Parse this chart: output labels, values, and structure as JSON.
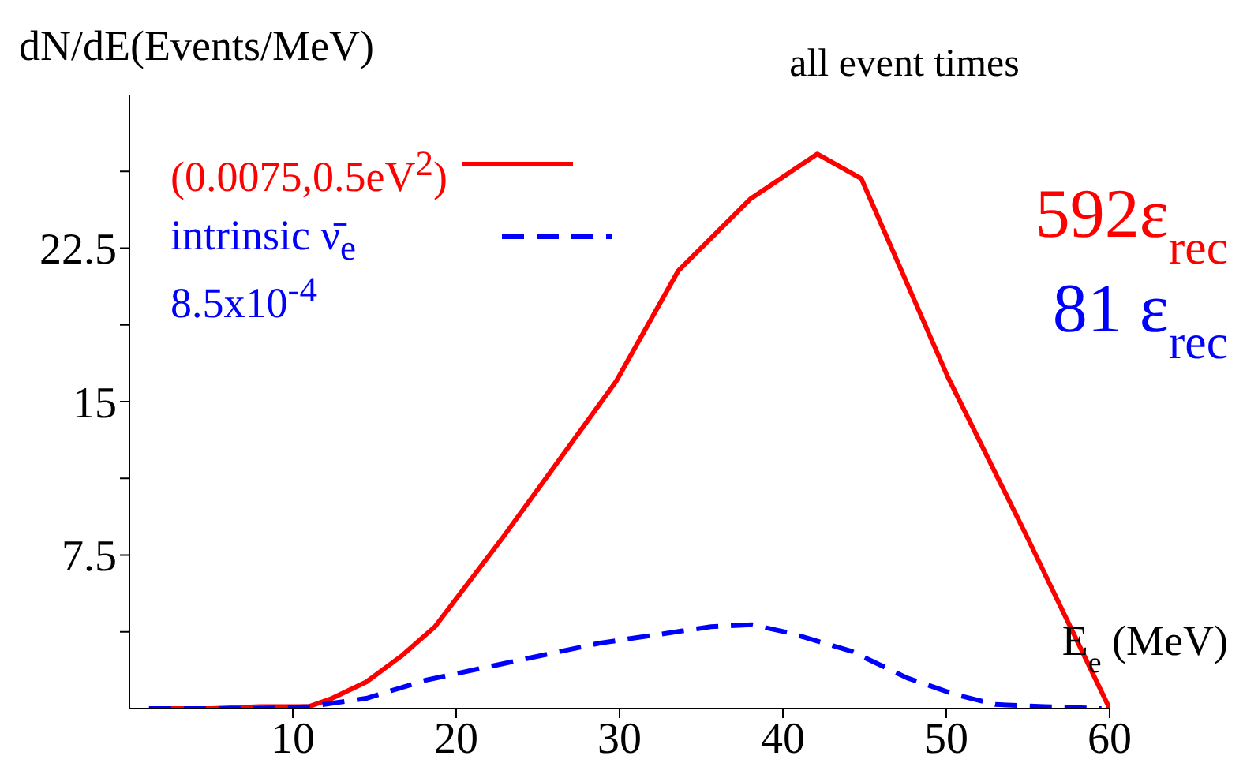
{
  "chart_data": {
    "type": "line",
    "title": "all event times",
    "xlabel": "E$_{e}$ (MeV)",
    "ylabel": "dN/dE(Events/MeV)",
    "annotations": [
      "592ε$_{rec}$",
      "81 ε$_{rec}$"
    ],
    "xlim": [
      0,
      60
    ],
    "xticks": [
      10,
      20,
      30,
      40,
      50,
      60
    ],
    "ylim": [
      0,
      30
    ],
    "yticks": [
      {
        "value": 3.75,
        "label": null
      },
      7.5,
      {
        "value": 11.25,
        "label": null
      },
      15,
      {
        "value": 18.75,
        "label": null
      },
      22.5,
      {
        "value": 26.25,
        "label": null
      }
    ],
    "legend": "top left",
    "marker": "none",
    "series": [
      {
        "name": "(0.0075,0.5eV$^{2}$)",
        "color": "#ff0000",
        "line_style": "solid",
        "x": [
          1.2,
          5,
          8,
          11,
          12.4,
          14.5,
          16.7,
          18.7,
          22.8,
          25.9,
          29.8,
          33.6,
          38,
          42.1,
          44.8,
          50.1,
          55,
          60
        ],
        "values": [
          0,
          0,
          0.1,
          0.1,
          0.5,
          1.3,
          2.6,
          4.0,
          8.3,
          11.7,
          16.0,
          21.4,
          24.9,
          27.1,
          25.9,
          16.2,
          8.3,
          0
        ]
      },
      {
        "name": "intrinsic ν̄$_{e}$ 8.5x10$^{-4}$",
        "color": "#0000ff",
        "line_style": "dashed",
        "x": [
          1.2,
          5,
          8,
          11,
          14.5,
          18.2,
          22.9,
          28.8,
          35.6,
          38.1,
          40.4,
          44.2,
          47.6,
          50.5,
          53,
          56,
          59.5
        ],
        "values": [
          0,
          0,
          0,
          0.1,
          0.5,
          1.4,
          2.2,
          3.2,
          4.0,
          4.1,
          3.7,
          2.8,
          1.5,
          0.7,
          0.2,
          0.1,
          0
        ]
      }
    ]
  }
}
